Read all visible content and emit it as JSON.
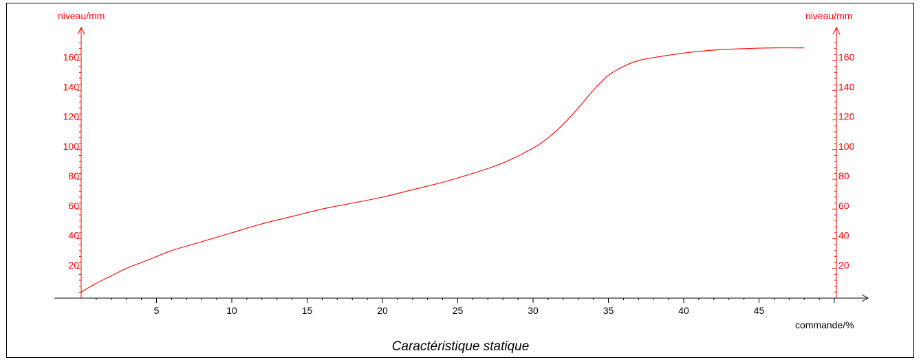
{
  "chart_data": {
    "type": "line",
    "caption": "Caractéristique statique",
    "ylabel_left": "niveau/mm",
    "ylabel_right": "niveau/mm",
    "xlabel": "commande/%",
    "x_ticks": [
      5,
      10,
      15,
      20,
      25,
      30,
      35,
      40,
      45
    ],
    "y_ticks": [
      20,
      40,
      60,
      80,
      100,
      120,
      140,
      160
    ],
    "xlim": [
      0,
      50
    ],
    "ylim": [
      0,
      175
    ],
    "grid": false,
    "series": [
      {
        "x": [
          0,
          1,
          2,
          3,
          4,
          5,
          6,
          8,
          10,
          12,
          14,
          16,
          18,
          20,
          22,
          24,
          26,
          28,
          30,
          31,
          32,
          33,
          34,
          35,
          36,
          37,
          38,
          40,
          42,
          44,
          46,
          48
        ],
        "y": [
          4,
          10,
          15,
          20,
          24,
          28,
          32,
          38,
          44,
          50,
          55,
          60,
          64,
          68,
          73,
          78,
          84,
          91,
          101,
          108,
          117,
          128,
          140,
          150,
          156,
          160,
          162,
          165,
          167,
          168,
          168.5,
          168.5
        ]
      }
    ],
    "colors": {
      "curve": "#ff0000",
      "axis_text": "#ff0000",
      "frame": "#000000"
    }
  }
}
